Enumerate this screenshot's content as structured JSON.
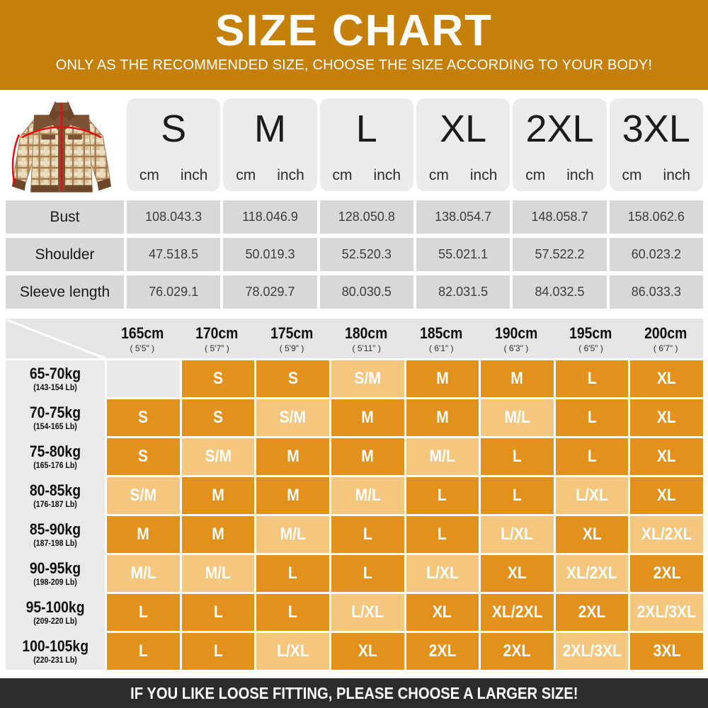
{
  "banner": {
    "title": "SIZE CHART",
    "subtitle": "ONLY AS THE RECOMMENDED SIZE, CHOOSE THE SIZE ACCORDING TO YOUR BODY!"
  },
  "images": {
    "jacket": "plaid-jacket-with-red-measurement-lines"
  },
  "size_table": {
    "sizes": [
      "S",
      "M",
      "L",
      "XL",
      "2XL",
      "3XL"
    ],
    "unit_labels": [
      "cm",
      "inch"
    ],
    "rows": [
      {
        "label": "Bust",
        "values": [
          [
            "108.0",
            "43.3"
          ],
          [
            "118.0",
            "46.9"
          ],
          [
            "128.0",
            "50.8"
          ],
          [
            "138.0",
            "54.7"
          ],
          [
            "148.0",
            "58.7"
          ],
          [
            "158.0",
            "62.6"
          ]
        ]
      },
      {
        "label": "Shoulder",
        "values": [
          [
            "47.5",
            "18.5"
          ],
          [
            "50.0",
            "19.3"
          ],
          [
            "52.5",
            "20.3"
          ],
          [
            "55.0",
            "21.1"
          ],
          [
            "57.5",
            "22.2"
          ],
          [
            "60.0",
            "23.2"
          ]
        ]
      },
      {
        "label": "Sleeve length",
        "values": [
          [
            "76.0",
            "29.1"
          ],
          [
            "78.0",
            "29.7"
          ],
          [
            "80.0",
            "30.5"
          ],
          [
            "82.0",
            "31.5"
          ],
          [
            "84.0",
            "32.5"
          ],
          [
            "86.0",
            "33.3"
          ]
        ]
      }
    ]
  },
  "fit_matrix": {
    "heights": [
      {
        "cm": "165cm",
        "ft": "( 5'5\" )"
      },
      {
        "cm": "170cm",
        "ft": "( 5'7\" )"
      },
      {
        "cm": "175cm",
        "ft": "( 5'9\" )"
      },
      {
        "cm": "180cm",
        "ft": "( 5'11\" )"
      },
      {
        "cm": "185cm",
        "ft": "( 6'1\" )"
      },
      {
        "cm": "190cm",
        "ft": "( 6'3\" )"
      },
      {
        "cm": "195cm",
        "ft": "( 6'5\" )"
      },
      {
        "cm": "200cm",
        "ft": "( 6'7\" )"
      }
    ],
    "weights": [
      {
        "kg": "65-70kg",
        "lb": "(143-154 Lb)"
      },
      {
        "kg": "70-75kg",
        "lb": "(154-165 Lb)"
      },
      {
        "kg": "75-80kg",
        "lb": "(165-176 Lb)"
      },
      {
        "kg": "80-85kg",
        "lb": "(176-187 Lb)"
      },
      {
        "kg": "85-90kg",
        "lb": "(187-198 Lb)"
      },
      {
        "kg": "90-95kg",
        "lb": "(198-209 Lb)"
      },
      {
        "kg": "95-100kg",
        "lb": "(209-220 Lb)"
      },
      {
        "kg": "100-105kg",
        "lb": "(220-231 Lb)"
      }
    ],
    "cells": [
      [
        "",
        "S",
        "S",
        "S/M",
        "M",
        "M",
        "L",
        "XL"
      ],
      [
        "S",
        "S",
        "S/M",
        "M",
        "M",
        "M/L",
        "L",
        "XL"
      ],
      [
        "S",
        "S/M",
        "M",
        "M",
        "M/L",
        "L",
        "L",
        "XL"
      ],
      [
        "S/M",
        "M",
        "M",
        "M/L",
        "L",
        "L",
        "L/XL",
        "XL"
      ],
      [
        "M",
        "M",
        "M/L",
        "L",
        "L",
        "L/XL",
        "XL",
        "XL/2XL"
      ],
      [
        "M/L",
        "M/L",
        "L",
        "L",
        "L/XL",
        "XL",
        "XL/2XL",
        "2XL"
      ],
      [
        "L",
        "L",
        "L",
        "L/XL",
        "XL",
        "XL/2XL",
        "2XL",
        "2XL/3XL"
      ],
      [
        "L",
        "L",
        "L/XL",
        "XL",
        "2XL",
        "2XL",
        "2XL/3XL",
        "3XL"
      ]
    ],
    "cell_styles": [
      [
        "empty",
        "dark",
        "dark",
        "light",
        "dark",
        "dark",
        "dark",
        "dark"
      ],
      [
        "dark",
        "dark",
        "light",
        "dark",
        "dark",
        "light",
        "dark",
        "dark"
      ],
      [
        "dark",
        "light",
        "dark",
        "dark",
        "light",
        "dark",
        "dark",
        "dark"
      ],
      [
        "light",
        "dark",
        "dark",
        "light",
        "dark",
        "dark",
        "light",
        "dark"
      ],
      [
        "dark",
        "dark",
        "light",
        "dark",
        "dark",
        "light",
        "dark",
        "light"
      ],
      [
        "light",
        "light",
        "dark",
        "dark",
        "light",
        "dark",
        "light",
        "dark"
      ],
      [
        "dark",
        "dark",
        "dark",
        "light",
        "dark",
        "dark",
        "dark",
        "light"
      ],
      [
        "dark",
        "dark",
        "light",
        "dark",
        "dark",
        "dark",
        "light",
        "dark"
      ]
    ]
  },
  "footer": {
    "text": "IF YOU LIKE LOOSE FITTING, PLEASE CHOOSE A LARGER SIZE!"
  },
  "colors": {
    "banner_bg": "#c5800a",
    "footer_bg": "#2c2c2c",
    "cell_dark": "#e2911d",
    "cell_light": "#f5c77e",
    "measure_line": "#e01010"
  }
}
